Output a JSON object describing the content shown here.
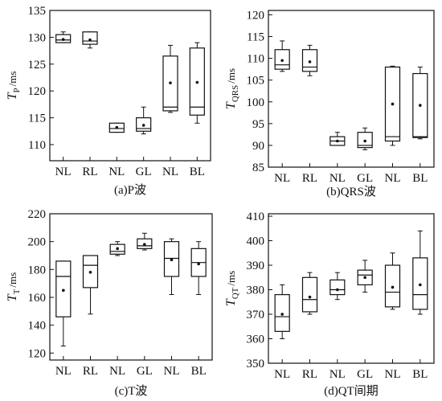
{
  "chart_data": [
    {
      "type": "box",
      "caption": "(a)P波",
      "ylabel_main": "T",
      "ylabel_sub": "P",
      "ylabel_unit": "/ms",
      "ylim": [
        107,
        135
      ],
      "yticks": [
        110,
        115,
        120,
        125,
        130,
        135
      ],
      "categories": [
        "NL",
        "RL",
        "NL",
        "GL",
        "NL",
        "BL"
      ],
      "boxes": [
        {
          "min": 129,
          "q1": 129,
          "median": 129.5,
          "q3": 130.5,
          "max": 131,
          "mean": 129.6
        },
        {
          "min": 128,
          "q1": 128.7,
          "median": 129.3,
          "q3": 131,
          "max": 131,
          "mean": 129.5
        },
        {
          "min": 112.3,
          "q1": 112.3,
          "median": 113,
          "q3": 114,
          "max": 114,
          "mean": 113.2
        },
        {
          "min": 112,
          "q1": 112.5,
          "median": 113,
          "q3": 115,
          "max": 117,
          "mean": 113.6
        },
        {
          "min": 116,
          "q1": 116.3,
          "median": 117,
          "q3": 126.5,
          "max": 128.5,
          "mean": 121.5
        },
        {
          "min": 114,
          "q1": 115.5,
          "median": 117,
          "q3": 128,
          "max": 129,
          "mean": 121.6
        }
      ]
    },
    {
      "type": "box",
      "caption": "(b)QRS波",
      "ylabel_main": "T",
      "ylabel_sub": "QRS",
      "ylabel_unit": "/ms",
      "ylim": [
        85,
        121
      ],
      "yticks": [
        85,
        90,
        95,
        100,
        105,
        110,
        115,
        120
      ],
      "categories": [
        "NL",
        "RL",
        "NL",
        "GL",
        "NL",
        "BL"
      ],
      "boxes": [
        {
          "min": 107,
          "q1": 107.5,
          "median": 108.5,
          "q3": 112,
          "max": 114,
          "mean": 109.5
        },
        {
          "min": 106,
          "q1": 107,
          "median": 108,
          "q3": 112,
          "max": 113,
          "mean": 109.2
        },
        {
          "min": 90,
          "q1": 90,
          "median": 91,
          "q3": 92,
          "max": 93,
          "mean": 91
        },
        {
          "min": 89,
          "q1": 89.5,
          "median": 90,
          "q3": 93,
          "max": 94,
          "mean": 91
        },
        {
          "min": 90,
          "q1": 91,
          "median": 92,
          "q3": 108,
          "max": 108.2,
          "mean": 99.5
        },
        {
          "min": 91.5,
          "q1": 91.8,
          "median": 92,
          "q3": 106.5,
          "max": 108,
          "mean": 99.2
        }
      ]
    },
    {
      "type": "box",
      "caption": "(c)T波",
      "ylabel_main": "T",
      "ylabel_sub": "T",
      "ylabel_unit": "/ms",
      "ylim": [
        115,
        220
      ],
      "yticks": [
        120,
        140,
        160,
        180,
        200,
        220
      ],
      "categories": [
        "NL",
        "RL",
        "NL",
        "GL",
        "NL",
        "BL"
      ],
      "boxes": [
        {
          "min": 125,
          "q1": 146,
          "median": 175,
          "q3": 186,
          "max": 186,
          "mean": 165
        },
        {
          "min": 148,
          "q1": 167,
          "median": 183,
          "q3": 190,
          "max": 190,
          "mean": 178
        },
        {
          "min": 190,
          "q1": 191,
          "median": 193,
          "q3": 198,
          "max": 200,
          "mean": 195
        },
        {
          "min": 194,
          "q1": 195,
          "median": 197,
          "q3": 202,
          "max": 206,
          "mean": 198
        },
        {
          "min": 162,
          "q1": 175,
          "median": 188,
          "q3": 200,
          "max": 202,
          "mean": 187
        },
        {
          "min": 162,
          "q1": 175,
          "median": 185,
          "q3": 195,
          "max": 200,
          "mean": 184
        }
      ]
    },
    {
      "type": "box",
      "caption": "(d)QT间期",
      "ylabel_main": "T",
      "ylabel_sub": "QT",
      "ylabel_unit": "/ms",
      "ylim": [
        350,
        411
      ],
      "yticks": [
        350,
        360,
        370,
        380,
        390,
        400,
        410
      ],
      "categories": [
        "NL",
        "RL",
        "NL",
        "GL",
        "NL",
        "BL"
      ],
      "boxes": [
        {
          "min": 360,
          "q1": 363,
          "median": 369,
          "q3": 378,
          "max": 382,
          "mean": 370
        },
        {
          "min": 370,
          "q1": 371,
          "median": 376,
          "q3": 385,
          "max": 387,
          "mean": 377
        },
        {
          "min": 376,
          "q1": 378,
          "median": 380,
          "q3": 384,
          "max": 387,
          "mean": 380
        },
        {
          "min": 379,
          "q1": 382,
          "median": 386,
          "q3": 388,
          "max": 392,
          "mean": 385
        },
        {
          "min": 372,
          "q1": 373,
          "median": 379,
          "q3": 390,
          "max": 395,
          "mean": 381
        },
        {
          "min": 370,
          "q1": 372,
          "median": 378,
          "q3": 393,
          "max": 404,
          "mean": 382
        }
      ]
    }
  ]
}
